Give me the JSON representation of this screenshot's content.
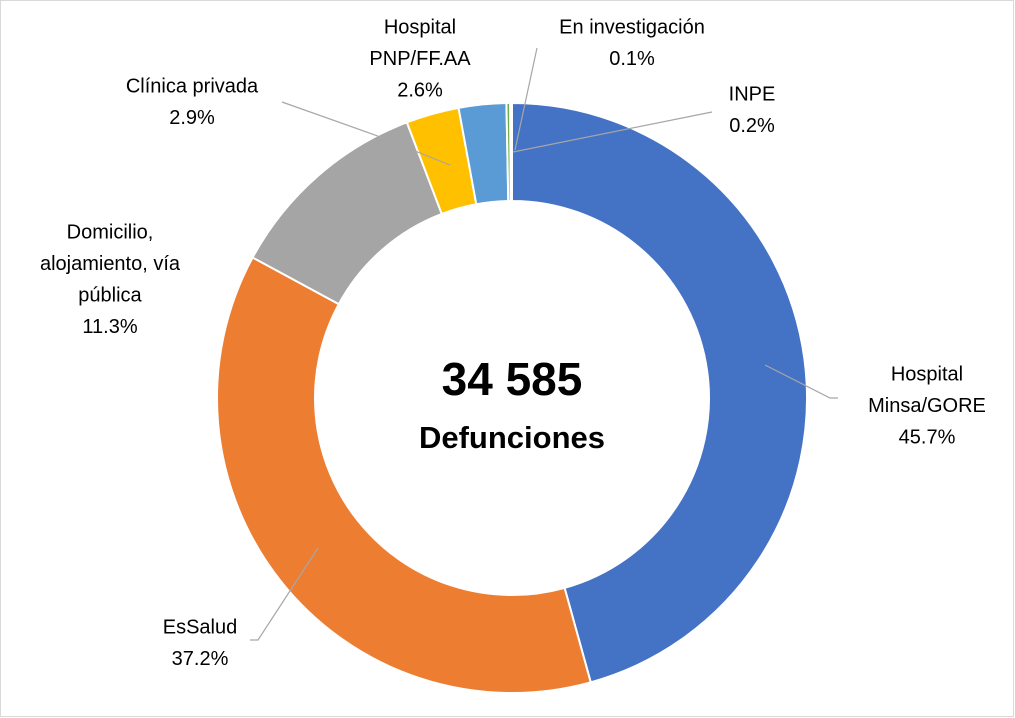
{
  "chart_data": {
    "type": "donut",
    "center_text": [
      "34 585",
      "Defunciones"
    ],
    "categories": [
      [
        "Hospital",
        "Minsa/GORE"
      ],
      [
        "EsSalud"
      ],
      [
        "Domicilio,",
        "alojamiento, vía",
        "pública"
      ],
      [
        "Clínica privada"
      ],
      [
        "Hospital",
        "PNP/FF.AA"
      ],
      [
        "INPE"
      ],
      [
        "En investigación"
      ]
    ],
    "values": [
      45.7,
      37.2,
      11.3,
      2.9,
      2.6,
      0.2,
      0.1
    ],
    "value_labels": [
      "45.7%",
      "37.2%",
      "11.3%",
      "2.9%",
      "2.6%",
      "0.2%",
      "0.1%"
    ],
    "colors": [
      "#4472c4",
      "#ed7d31",
      "#a5a5a5",
      "#ffc000",
      "#5b9bd5",
      "#70ad47",
      "#264478"
    ]
  }
}
